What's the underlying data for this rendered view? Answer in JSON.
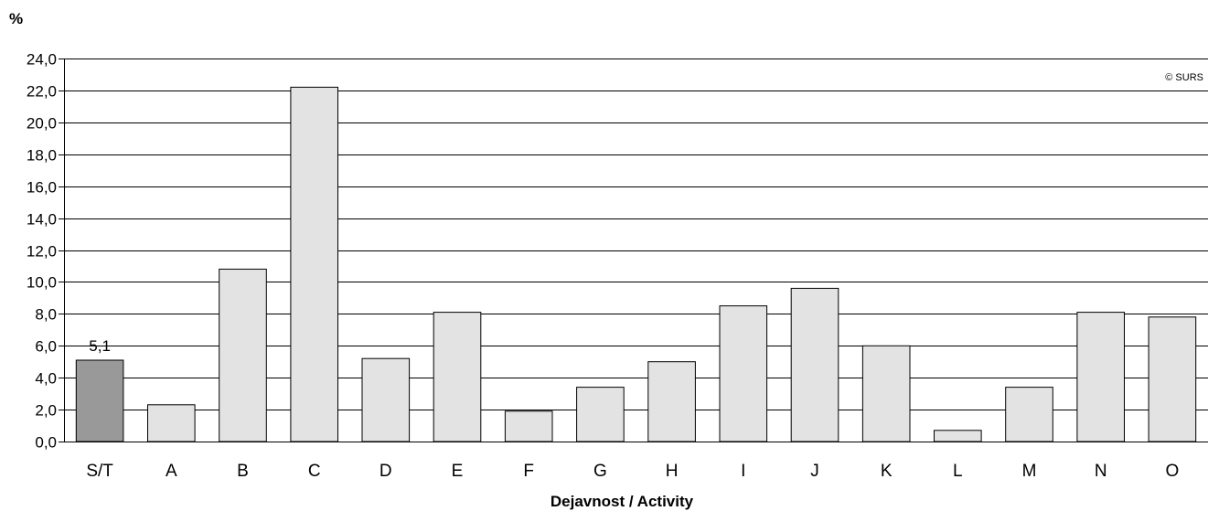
{
  "chart_data": {
    "type": "bar",
    "ylabel": "%",
    "xlabel": "Dejavnost / Activity",
    "credit": "© SURS",
    "categories": [
      "S/T",
      "A",
      "B",
      "C",
      "D",
      "E",
      "F",
      "G",
      "H",
      "I",
      "J",
      "K",
      "L",
      "M",
      "N",
      "O"
    ],
    "values": [
      5.1,
      2.3,
      10.8,
      22.2,
      5.2,
      8.1,
      1.9,
      3.4,
      5.0,
      8.5,
      9.6,
      6.0,
      0.7,
      3.4,
      8.1,
      7.8
    ],
    "ylim": [
      0,
      24
    ],
    "yticks": [
      0,
      2,
      4,
      6,
      8,
      10,
      12,
      14,
      16,
      18,
      20,
      22,
      24
    ],
    "ytick_labels": [
      "0,0",
      "2,0",
      "4,0",
      "6,0",
      "8,0",
      "10,0",
      "12,0",
      "14,0",
      "16,0",
      "18,0",
      "20,0",
      "22,0",
      "24,0"
    ],
    "data_labels": [
      {
        "index": 0,
        "text": "5,1"
      }
    ],
    "highlight_index": 0,
    "grid": true,
    "legend": "none",
    "colors": {
      "highlight_bar": "#999999",
      "bar": "#e3e3e3",
      "bar_stroke": "#000000",
      "grid": "#000000",
      "text": "#000000"
    }
  }
}
